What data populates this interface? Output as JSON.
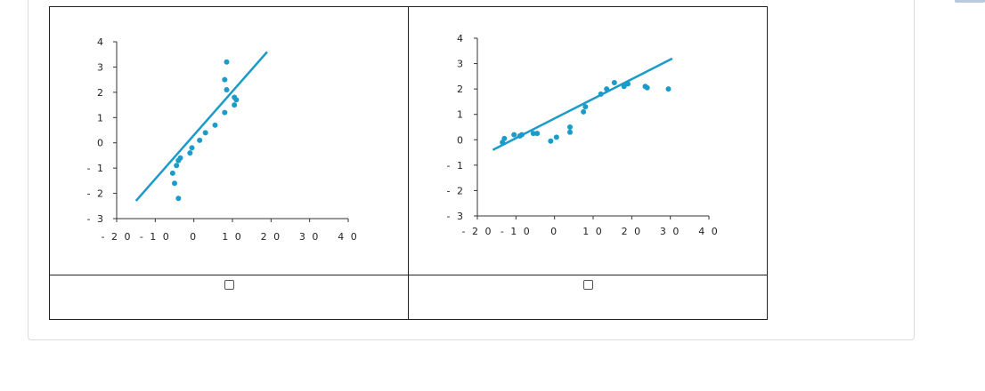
{
  "colors": {
    "series": "#1a9bc9",
    "axis": "#333333"
  },
  "chart_data": [
    {
      "type": "scatter",
      "title": "",
      "xlabel": "",
      "ylabel": "",
      "xlim": [
        -20,
        40
      ],
      "ylim": [
        -3,
        4
      ],
      "x_ticks": [
        "- 2 0",
        "- 1 0",
        "0",
        "1 0",
        "2 0",
        "3 0",
        "4 0"
      ],
      "x_tick_values": [
        -20,
        -10,
        0,
        10,
        20,
        30,
        40
      ],
      "y_ticks": [
        "4",
        "3",
        "2",
        "1",
        "0",
        "- 1",
        "- 2",
        "- 3"
      ],
      "y_tick_values": [
        4,
        3,
        2,
        1,
        0,
        -1,
        -2,
        -3
      ],
      "points": [
        [
          -4,
          -2.2
        ],
        [
          -5,
          -1.6
        ],
        [
          -5.5,
          -1.2
        ],
        [
          -4.5,
          -0.9
        ],
        [
          -4,
          -0.7
        ],
        [
          -3.5,
          -0.6
        ],
        [
          -1,
          -0.4
        ],
        [
          -0.5,
          -0.2
        ],
        [
          1.5,
          0.1
        ],
        [
          3,
          0.4
        ],
        [
          5.5,
          0.7
        ],
        [
          8,
          1.2
        ],
        [
          10.5,
          1.5
        ],
        [
          11,
          1.7
        ],
        [
          10.5,
          1.8
        ],
        [
          8.5,
          2.1
        ],
        [
          8,
          2.5
        ],
        [
          8.5,
          3.2
        ]
      ],
      "trendline": {
        "from": [
          -15,
          -2.3
        ],
        "to": [
          19,
          3.6
        ]
      }
    },
    {
      "type": "scatter",
      "title": "",
      "xlabel": "",
      "ylabel": "",
      "xlim": [
        -20,
        40
      ],
      "ylim": [
        -3,
        4
      ],
      "x_ticks": [
        "- 2 0",
        "- 1 0",
        "0",
        "1 0",
        "2 0",
        "3 0",
        "4 0"
      ],
      "x_tick_values": [
        -20,
        -10,
        0,
        10,
        20,
        30,
        40
      ],
      "y_ticks": [
        "4",
        "3",
        "2",
        "1",
        "0",
        "- 1",
        "- 2",
        "- 3"
      ],
      "y_tick_values": [
        4,
        3,
        2,
        1,
        0,
        -1,
        -2,
        -3
      ],
      "points": [
        [
          -13.5,
          -0.1
        ],
        [
          -13,
          0.05
        ],
        [
          -10.5,
          0.2
        ],
        [
          -9,
          0.15
        ],
        [
          -8.5,
          0.2
        ],
        [
          -5.5,
          0.25
        ],
        [
          -4.5,
          0.25
        ],
        [
          -1,
          -0.05
        ],
        [
          0.5,
          0.1
        ],
        [
          4,
          0.5
        ],
        [
          4,
          0.3
        ],
        [
          7.5,
          1.1
        ],
        [
          8,
          1.3
        ],
        [
          12,
          1.8
        ],
        [
          13.5,
          2.0
        ],
        [
          15.5,
          2.25
        ],
        [
          18,
          2.1
        ],
        [
          19,
          2.2
        ],
        [
          23.5,
          2.1
        ],
        [
          24,
          2.05
        ],
        [
          29.5,
          2.0
        ]
      ],
      "trendline": {
        "from": [
          -16,
          -0.4
        ],
        "to": [
          30.5,
          3.2
        ]
      }
    }
  ],
  "answers": [
    {
      "checked": false
    },
    {
      "checked": false
    }
  ]
}
